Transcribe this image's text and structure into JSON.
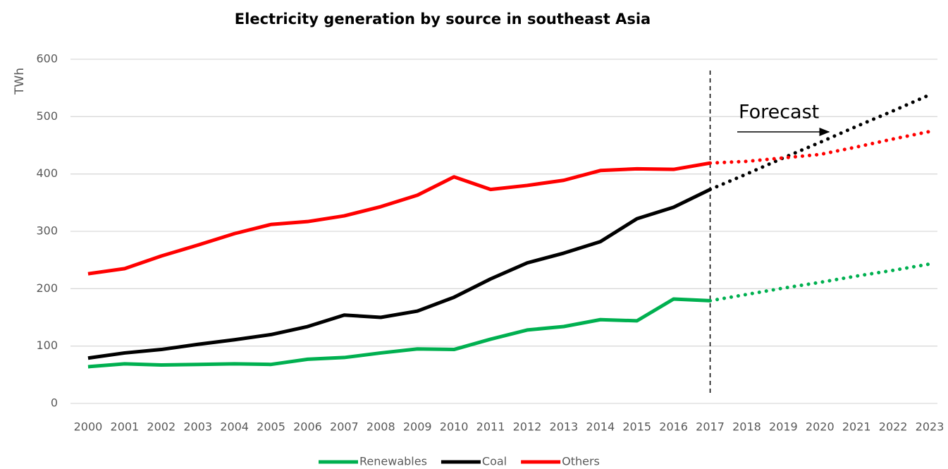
{
  "chart_data": {
    "type": "line",
    "title": "Electricity generation by source in southeast Asia",
    "y_label": "TWh",
    "categories": [
      "2000",
      "2001",
      "2002",
      "2003",
      "2004",
      "2005",
      "2006",
      "2007",
      "2008",
      "2009",
      "2010",
      "2011",
      "2012",
      "2013",
      "2014",
      "2015",
      "2016",
      "2017",
      "2018",
      "2019",
      "2020",
      "2021",
      "2022",
      "2023"
    ],
    "series": [
      {
        "name": "Renewables",
        "color": "#00b050",
        "values": [
          64,
          69,
          67,
          68,
          69,
          68,
          77,
          80,
          88,
          95,
          94,
          112,
          128,
          134,
          146,
          144,
          182,
          179,
          190,
          201,
          211,
          222,
          232,
          243
        ]
      },
      {
        "name": "Coal",
        "color": "#000000",
        "values": [
          79,
          88,
          94,
          103,
          111,
          120,
          134,
          154,
          150,
          161,
          185,
          217,
          245,
          262,
          282,
          322,
          342,
          373,
          400,
          428,
          455,
          483,
          510,
          538
        ]
      },
      {
        "name": "Others",
        "color": "#ff0000",
        "values": [
          226,
          235,
          257,
          276,
          296,
          312,
          317,
          327,
          343,
          363,
          395,
          373,
          380,
          389,
          406,
          409,
          408,
          419,
          422,
          428,
          434,
          447,
          461,
          474
        ]
      }
    ],
    "annotation": {
      "text": "Forecast",
      "x": "2017"
    },
    "ylim": [
      0,
      600
    ],
    "yticks": [
      0,
      100,
      200,
      300,
      400,
      500,
      600
    ],
    "grid": true,
    "legend": "bottom"
  }
}
